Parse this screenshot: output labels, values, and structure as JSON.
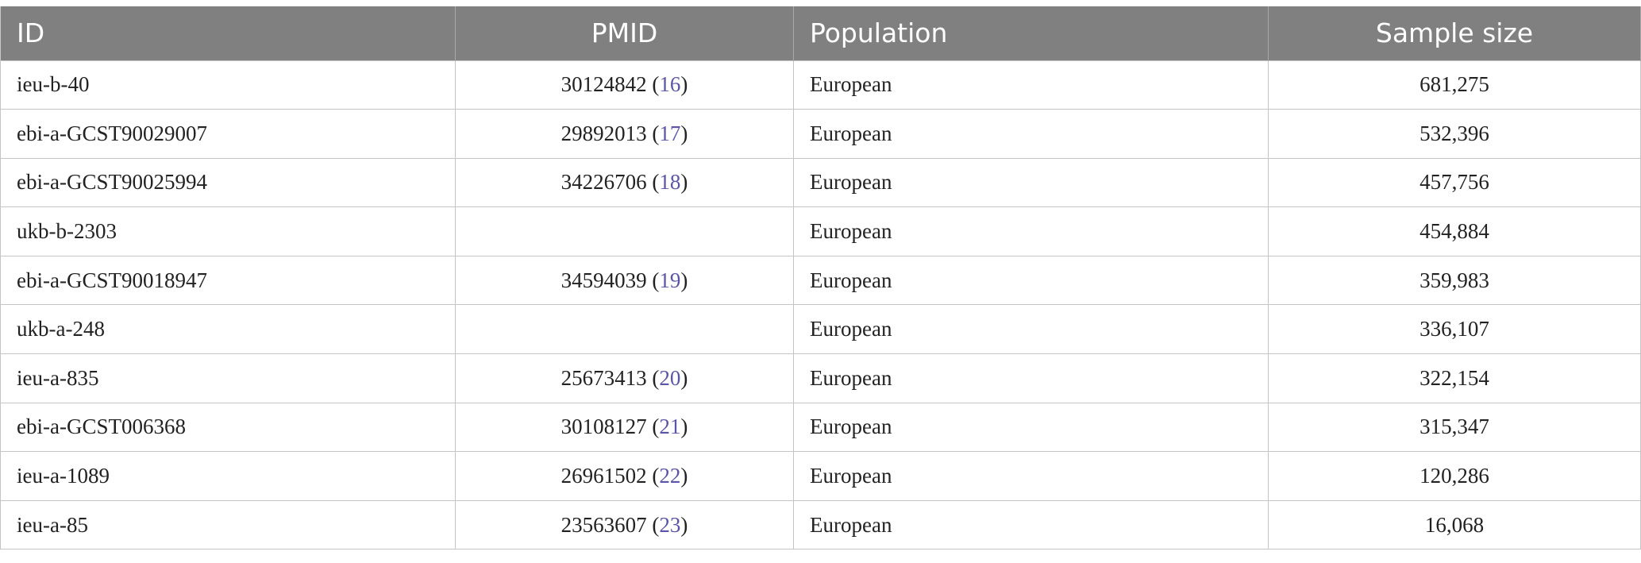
{
  "headers": {
    "id": "ID",
    "pmid": "PMID",
    "population": "Population",
    "sample_size": "Sample size"
  },
  "rows": [
    {
      "id": "ieu-b-40",
      "pmid": "30124842",
      "ref": "16",
      "population": "European",
      "sample_size": "681,275"
    },
    {
      "id": "ebi-a-GCST90029007",
      "pmid": "29892013",
      "ref": "17",
      "population": "European",
      "sample_size": "532,396"
    },
    {
      "id": "ebi-a-GCST90025994",
      "pmid": "34226706",
      "ref": "18",
      "population": "European",
      "sample_size": "457,756"
    },
    {
      "id": "ukb-b-2303",
      "pmid": "",
      "ref": "",
      "population": "European",
      "sample_size": "454,884"
    },
    {
      "id": "ebi-a-GCST90018947",
      "pmid": "34594039",
      "ref": "19",
      "population": "European",
      "sample_size": "359,983"
    },
    {
      "id": "ukb-a-248",
      "pmid": "",
      "ref": "",
      "population": "European",
      "sample_size": "336,107"
    },
    {
      "id": "ieu-a-835",
      "pmid": "25673413",
      "ref": "20",
      "population": "European",
      "sample_size": "322,154"
    },
    {
      "id": "ebi-a-GCST006368",
      "pmid": "30108127",
      "ref": "21",
      "population": "European",
      "sample_size": "315,347"
    },
    {
      "id": "ieu-a-1089",
      "pmid": "26961502",
      "ref": "22",
      "population": "European",
      "sample_size": "120,286"
    },
    {
      "id": "ieu-a-85",
      "pmid": "23563607",
      "ref": "23",
      "population": "European",
      "sample_size": "16,068"
    }
  ],
  "colors": {
    "header_bg": "#808080",
    "header_text": "#ffffff",
    "ref_link": "#5a55a8",
    "border": "#c4c4c4"
  }
}
